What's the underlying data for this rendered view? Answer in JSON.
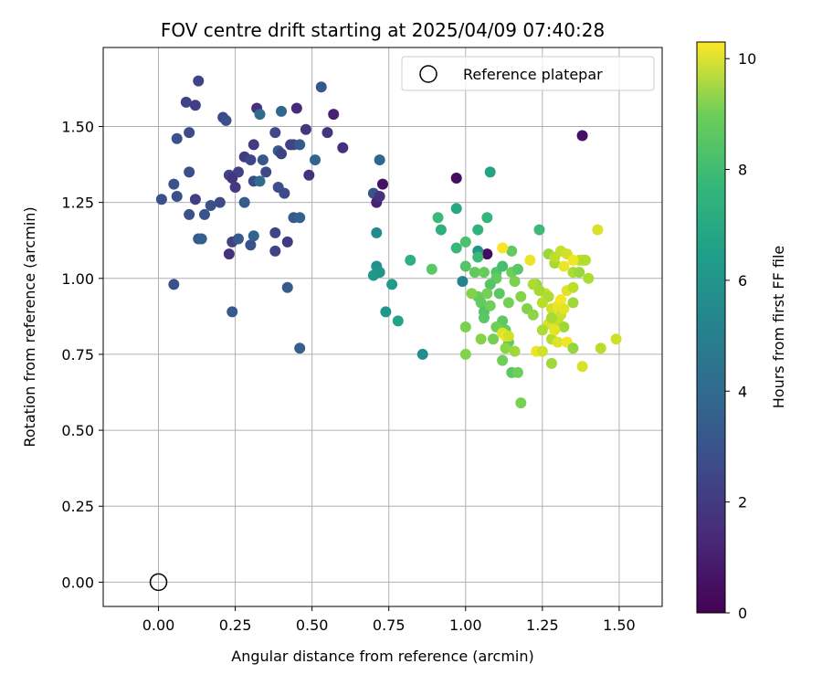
{
  "chart_data": {
    "type": "scatter",
    "title": "FOV centre drift starting at 2025/04/09 07:40:28",
    "xlabel": "Angular distance from reference (arcmin)",
    "ylabel": "Rotation from reference (arcmin)",
    "xlim": [
      -0.18,
      1.64
    ],
    "ylim": [
      -0.08,
      1.76
    ],
    "xticks": [
      "0.00",
      "0.25",
      "0.50",
      "0.75",
      "1.00",
      "1.25",
      "1.50"
    ],
    "yticks": [
      "0.00",
      "0.25",
      "0.50",
      "0.75",
      "1.00",
      "1.25",
      "1.50"
    ],
    "grid": true,
    "legend": {
      "placement": "top-right",
      "entries": [
        "Reference platepar"
      ]
    },
    "reference_point": {
      "x": 0.0,
      "y": 0.0
    },
    "colorbar": {
      "label": "Hours from first FF file",
      "range": [
        0,
        10.3
      ],
      "ticks": [
        "0",
        "2",
        "4",
        "6",
        "8",
        "10"
      ],
      "colormap": "viridis"
    },
    "points": [
      [
        0.13,
        1.65,
        2.2
      ],
      [
        0.09,
        1.58,
        2.1
      ],
      [
        0.12,
        1.57,
        1.9
      ],
      [
        0.1,
        1.48,
        2.4
      ],
      [
        0.06,
        1.46,
        2.6
      ],
      [
        0.21,
        1.53,
        2.3
      ],
      [
        0.22,
        1.52,
        2.5
      ],
      [
        0.32,
        1.56,
        1.5
      ],
      [
        0.33,
        1.54,
        3.6
      ],
      [
        0.4,
        1.55,
        3.4
      ],
      [
        0.45,
        1.56,
        1.2
      ],
      [
        0.53,
        1.63,
        2.8
      ],
      [
        0.57,
        1.54,
        1.0
      ],
      [
        0.55,
        1.48,
        1.6
      ],
      [
        0.48,
        1.49,
        1.7
      ],
      [
        0.43,
        1.44,
        1.9
      ],
      [
        0.44,
        1.44,
        2.2
      ],
      [
        0.46,
        1.44,
        2.9
      ],
      [
        0.38,
        1.48,
        2.3
      ],
      [
        0.39,
        1.42,
        2.9
      ],
      [
        0.4,
        1.41,
        2.0
      ],
      [
        0.31,
        1.44,
        1.8
      ],
      [
        0.34,
        1.39,
        2.8
      ],
      [
        0.28,
        1.4,
        1.8
      ],
      [
        0.3,
        1.39,
        2.2
      ],
      [
        0.26,
        1.35,
        2.0
      ],
      [
        0.23,
        1.34,
        2.2
      ],
      [
        0.24,
        1.33,
        1.6
      ],
      [
        0.31,
        1.32,
        2.4
      ],
      [
        0.33,
        1.32,
        3.6
      ],
      [
        0.35,
        1.35,
        2.3
      ],
      [
        0.39,
        1.3,
        2.5
      ],
      [
        0.41,
        1.28,
        2.3
      ],
      [
        0.49,
        1.34,
        1.5
      ],
      [
        0.51,
        1.39,
        3.3
      ],
      [
        0.6,
        1.43,
        1.4
      ],
      [
        0.05,
        1.31,
        2.7
      ],
      [
        0.1,
        1.35,
        2.5
      ],
      [
        0.01,
        1.26,
        2.6
      ],
      [
        0.06,
        1.27,
        2.5
      ],
      [
        0.12,
        1.26,
        1.9
      ],
      [
        0.1,
        1.21,
        2.6
      ],
      [
        0.17,
        1.24,
        2.6
      ],
      [
        0.2,
        1.25,
        2.4
      ],
      [
        0.15,
        1.21,
        2.7
      ],
      [
        0.25,
        1.3,
        1.8
      ],
      [
        0.28,
        1.25,
        3.0
      ],
      [
        0.13,
        1.13,
        2.9
      ],
      [
        0.14,
        1.13,
        3.1
      ],
      [
        0.24,
        1.12,
        2.0
      ],
      [
        0.26,
        1.13,
        2.9
      ],
      [
        0.3,
        1.11,
        2.6
      ],
      [
        0.31,
        1.14,
        3.3
      ],
      [
        0.38,
        1.15,
        2.2
      ],
      [
        0.38,
        1.09,
        2.1
      ],
      [
        0.42,
        1.12,
        1.8
      ],
      [
        0.44,
        1.2,
        2.9
      ],
      [
        0.46,
        1.2,
        3.2
      ],
      [
        0.23,
        1.08,
        1.5
      ],
      [
        0.05,
        0.98,
        2.6
      ],
      [
        0.42,
        0.97,
        3.0
      ],
      [
        0.24,
        0.89,
        2.9
      ],
      [
        0.46,
        0.77,
        3.1
      ],
      [
        0.7,
        1.28,
        2.7
      ],
      [
        0.72,
        1.39,
        3.4
      ],
      [
        0.73,
        1.31,
        0.5
      ],
      [
        0.71,
        1.25,
        1.0
      ],
      [
        0.72,
        1.27,
        1.5
      ],
      [
        0.97,
        1.33,
        0.4
      ],
      [
        1.38,
        1.47,
        0.5
      ],
      [
        1.07,
        1.08,
        0.3
      ],
      [
        0.71,
        1.15,
        4.9
      ],
      [
        0.71,
        1.04,
        5.2
      ],
      [
        0.7,
        1.01,
        5.5
      ],
      [
        0.72,
        1.02,
        5.3
      ],
      [
        0.76,
        0.98,
        5.6
      ],
      [
        0.74,
        0.89,
        5.4
      ],
      [
        0.78,
        0.86,
        6.0
      ],
      [
        0.86,
        0.75,
        5.0
      ],
      [
        0.99,
        0.99,
        4.6
      ],
      [
        1.08,
        1.35,
        6.0
      ],
      [
        0.91,
        1.2,
        7.0
      ],
      [
        0.97,
        1.23,
        6.2
      ],
      [
        0.92,
        1.16,
        6.5
      ],
      [
        1.04,
        1.16,
        6.6
      ],
      [
        1.07,
        1.2,
        6.8
      ],
      [
        1.04,
        1.09,
        5.3
      ],
      [
        0.82,
        1.06,
        6.5
      ],
      [
        0.89,
        1.03,
        7.6
      ],
      [
        0.97,
        1.1,
        6.9
      ],
      [
        1.0,
        1.12,
        7.3
      ],
      [
        1.04,
        1.07,
        7.0
      ],
      [
        1.0,
        1.04,
        7.5
      ],
      [
        1.03,
        1.02,
        7.7
      ],
      [
        1.06,
        1.02,
        7.9
      ],
      [
        1.1,
        1.02,
        7.4
      ],
      [
        1.12,
        1.04,
        7.2
      ],
      [
        1.15,
        1.09,
        7.8
      ],
      [
        1.15,
        1.02,
        8.0
      ],
      [
        1.17,
        1.03,
        7.6
      ],
      [
        1.16,
        0.99,
        8.2
      ],
      [
        1.1,
        1.0,
        7.8
      ],
      [
        1.08,
        0.98,
        7.5
      ],
      [
        1.07,
        0.95,
        8.1
      ],
      [
        1.04,
        0.94,
        7.9
      ],
      [
        1.02,
        0.95,
        8.3
      ],
      [
        1.05,
        0.92,
        7.8
      ],
      [
        1.06,
        0.89,
        7.5
      ],
      [
        1.08,
        0.91,
        8.0
      ],
      [
        1.11,
        0.95,
        7.6
      ],
      [
        1.14,
        0.92,
        8.1
      ],
      [
        1.18,
        0.94,
        8.4
      ],
      [
        1.12,
        0.86,
        7.7
      ],
      [
        1.1,
        0.84,
        8.0
      ],
      [
        1.13,
        0.83,
        7.9
      ],
      [
        1.06,
        0.87,
        7.6
      ],
      [
        1.0,
        0.84,
        8.2
      ],
      [
        1.05,
        0.8,
        8.4
      ],
      [
        1.09,
        0.8,
        8.1
      ],
      [
        1.14,
        0.79,
        7.8
      ],
      [
        1.12,
        0.73,
        8.0
      ],
      [
        1.15,
        0.69,
        7.6
      ],
      [
        1.17,
        0.69,
        8.0
      ],
      [
        1.18,
        0.59,
        8.2
      ],
      [
        1.0,
        0.75,
        8.3
      ],
      [
        1.13,
        0.77,
        8.5
      ],
      [
        1.16,
        0.76,
        8.8
      ],
      [
        1.2,
        0.9,
        8.3
      ],
      [
        1.22,
        0.88,
        8.5
      ],
      [
        1.23,
        0.98,
        8.6
      ],
      [
        1.24,
        1.16,
        7.0
      ],
      [
        1.27,
        1.08,
        8.7
      ],
      [
        1.29,
        1.05,
        8.9
      ],
      [
        1.29,
        1.07,
        9.3
      ],
      [
        1.31,
        1.09,
        9.4
      ],
      [
        1.33,
        1.08,
        9.6
      ],
      [
        1.35,
        1.02,
        9.0
      ],
      [
        1.37,
        1.06,
        9.5
      ],
      [
        1.38,
        1.06,
        9.2
      ],
      [
        1.39,
        1.06,
        9.1
      ],
      [
        1.37,
        1.02,
        8.7
      ],
      [
        1.4,
        1.0,
        9.0
      ],
      [
        1.32,
        1.04,
        10.0
      ],
      [
        1.43,
        1.16,
        9.7
      ],
      [
        1.12,
        1.1,
        10.2
      ],
      [
        1.21,
        1.06,
        10.0
      ],
      [
        1.35,
        1.06,
        10.1
      ],
      [
        1.24,
        0.96,
        9.8
      ],
      [
        1.26,
        0.95,
        9.5
      ],
      [
        1.27,
        0.94,
        9.0
      ],
      [
        1.25,
        0.92,
        9.2
      ],
      [
        1.28,
        0.9,
        9.6
      ],
      [
        1.3,
        0.91,
        10.0
      ],
      [
        1.31,
        0.88,
        9.5
      ],
      [
        1.33,
        0.96,
        9.8
      ],
      [
        1.35,
        0.97,
        9.3
      ],
      [
        1.35,
        0.92,
        8.8
      ],
      [
        1.3,
        0.86,
        9.4
      ],
      [
        1.27,
        0.85,
        9.7
      ],
      [
        1.28,
        0.87,
        8.9
      ],
      [
        1.25,
        0.83,
        9.0
      ],
      [
        1.28,
        0.8,
        9.1
      ],
      [
        1.3,
        0.79,
        9.8
      ],
      [
        1.33,
        0.79,
        10.1
      ],
      [
        1.32,
        0.84,
        8.8
      ],
      [
        1.35,
        0.77,
        8.6
      ],
      [
        1.23,
        0.76,
        10.0
      ],
      [
        1.25,
        0.76,
        9.6
      ],
      [
        1.28,
        0.72,
        8.8
      ],
      [
        1.38,
        0.71,
        9.7
      ],
      [
        1.44,
        0.77,
        9.2
      ],
      [
        1.49,
        0.8,
        9.5
      ],
      [
        1.22,
        0.98,
        9.0
      ],
      [
        1.24,
        0.96,
        8.9
      ],
      [
        1.12,
        0.82,
        9.8
      ],
      [
        1.13,
        0.81,
        10.0
      ],
      [
        1.14,
        0.81,
        9.6
      ],
      [
        1.29,
        0.83,
        9.9
      ],
      [
        1.31,
        0.93,
        10.2
      ],
      [
        1.32,
        0.9,
        9.9
      ]
    ]
  }
}
